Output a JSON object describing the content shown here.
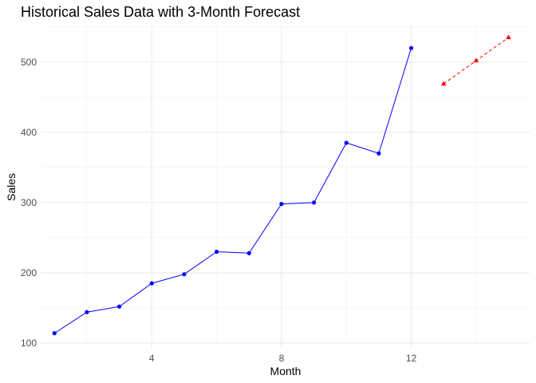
{
  "chart_data": {
    "type": "line",
    "title": "Historical Sales Data with 3-Month Forecast",
    "xlabel": "Month",
    "ylabel": "Sales",
    "xlim": [
      0.6,
      15.65
    ],
    "ylim": [
      92,
      552
    ],
    "x_ticks": [
      4,
      8,
      12
    ],
    "y_ticks": [
      100,
      200,
      300,
      400,
      500
    ],
    "grid": true,
    "legend": "none",
    "series": [
      {
        "style": "solid",
        "color": "#0000FF",
        "points": [
          {
            "x": 1,
            "y": 114
          },
          {
            "x": 2,
            "y": 144
          },
          {
            "x": 3,
            "y": 152
          },
          {
            "x": 4,
            "y": 185
          },
          {
            "x": 5,
            "y": 198
          },
          {
            "x": 6,
            "y": 230
          },
          {
            "x": 7,
            "y": 228
          },
          {
            "x": 8,
            "y": 298
          },
          {
            "x": 9,
            "y": 300
          },
          {
            "x": 10,
            "y": 385
          },
          {
            "x": 11,
            "y": 370
          },
          {
            "x": 12,
            "y": 520
          }
        ]
      },
      {
        "style": "dashed",
        "color": "#FF0000",
        "points": [
          {
            "x": 13,
            "y": 469
          },
          {
            "x": 14,
            "y": 502
          },
          {
            "x": 15,
            "y": 535
          }
        ]
      }
    ]
  }
}
